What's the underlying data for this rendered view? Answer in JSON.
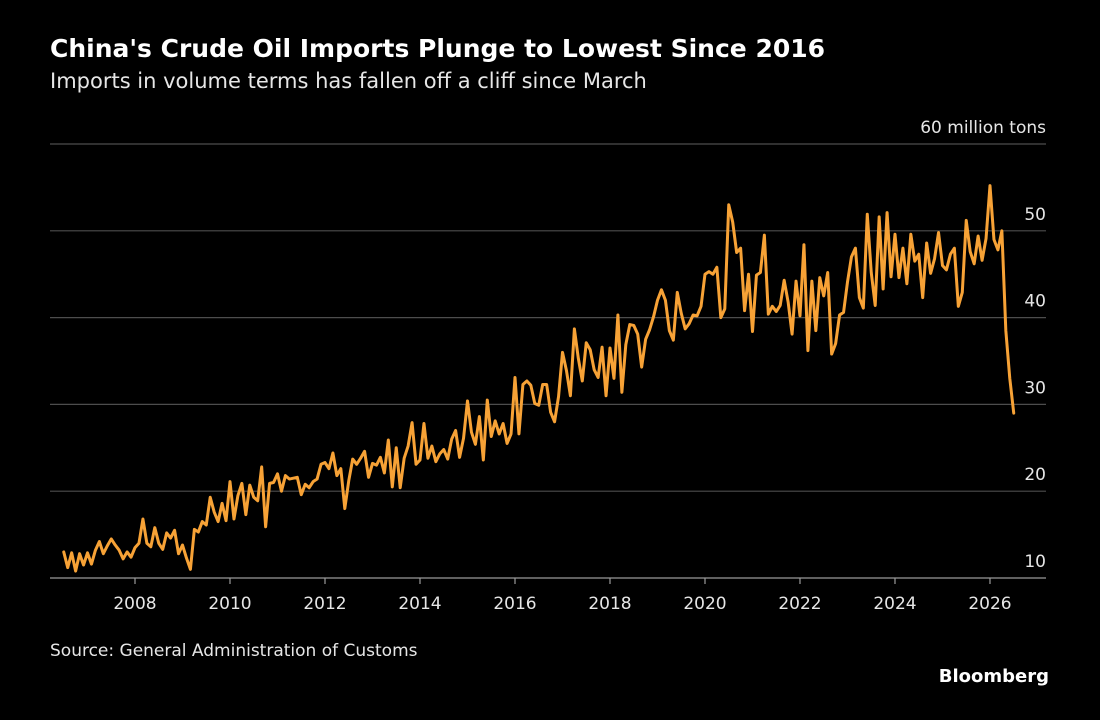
{
  "chart_data": {
    "type": "line",
    "title": "China's Crude Oil Imports Plunge to Lowest Since 2016",
    "subtitle": "Imports in volume terms has fallen off a cliff since March",
    "source": "Source: General Administration of Customs",
    "brand": "Bloomberg",
    "categories": [
      null,
      null,
      null,
      null,
      null,
      null,
      null,
      null,
      null,
      null,
      null,
      null,
      null,
      null,
      null,
      null,
      null,
      null,
      "2008",
      null,
      null,
      null,
      null,
      null,
      null,
      null,
      null,
      null,
      null,
      null,
      null,
      null,
      null,
      null,
      null,
      null,
      null,
      null,
      null,
      null,
      null,
      null,
      "2010",
      null,
      null,
      null,
      null,
      null,
      null,
      null,
      null,
      null,
      null,
      null,
      null,
      null,
      null,
      null,
      null,
      null,
      null,
      null,
      null,
      null,
      null,
      null,
      "2012",
      null,
      null,
      null,
      null,
      null,
      null,
      null,
      null,
      null,
      null,
      null,
      null,
      null,
      null,
      null,
      null,
      null,
      null,
      null,
      null,
      null,
      null,
      null,
      "2014",
      null,
      null,
      null,
      null,
      null,
      null,
      null,
      null,
      null,
      null,
      null,
      null,
      null,
      null,
      null,
      null,
      null,
      null,
      null,
      null,
      null,
      null,
      null,
      "2016",
      null,
      null,
      null,
      null,
      null,
      null,
      null,
      null,
      null,
      null,
      null,
      null,
      null,
      null,
      null,
      null,
      null,
      null,
      null,
      null,
      null,
      null,
      null,
      "2018",
      null,
      null,
      null,
      null,
      null,
      null,
      null,
      null,
      null,
      null,
      null,
      null,
      null,
      null,
      null,
      null,
      null,
      null,
      null,
      null,
      null,
      null,
      null,
      "2020",
      null,
      null,
      null,
      null,
      null,
      null,
      null,
      null,
      null,
      null,
      null,
      null,
      null,
      null,
      null,
      null,
      null,
      null,
      null,
      null,
      null,
      null,
      null,
      "2022",
      null,
      null,
      null,
      null,
      null,
      null,
      null,
      null,
      null,
      null,
      null,
      null,
      null,
      null,
      null,
      null,
      null,
      null,
      null,
      null,
      null,
      null,
      null,
      "2024",
      null,
      null,
      null,
      null,
      null,
      null,
      null,
      null,
      null,
      null,
      null,
      null,
      null,
      null,
      null,
      null,
      null,
      null,
      null,
      null,
      null,
      null,
      null,
      "2026",
      null,
      null,
      null,
      null,
      null,
      null
    ],
    "series": [
      {
        "color": "#f7a236",
        "values": [
          13.0,
          11.2,
          12.9,
          10.8,
          12.8,
          11.5,
          12.9,
          11.6,
          13.2,
          14.2,
          12.8,
          13.7,
          14.5,
          13.8,
          13.2,
          12.2,
          13.0,
          12.4,
          13.5,
          14.0,
          16.8,
          14.0,
          13.6,
          15.8,
          14.0,
          13.3,
          15.2,
          14.6,
          15.5,
          12.8,
          13.8,
          12.3,
          11.0,
          15.6,
          15.3,
          16.5,
          16.1,
          19.3,
          17.6,
          16.5,
          18.6,
          16.6,
          21.1,
          16.8,
          19.5,
          20.9,
          17.3,
          20.7,
          19.3,
          18.9,
          22.8,
          15.9,
          20.9,
          21.0,
          22.0,
          20.0,
          21.8,
          21.4,
          21.5,
          21.6,
          19.6,
          20.8,
          20.4,
          21.1,
          21.4,
          23.1,
          23.3,
          22.6,
          24.4,
          21.8,
          22.6,
          18.0,
          21.2,
          23.7,
          23.1,
          23.8,
          24.6,
          21.6,
          23.2,
          23.0,
          23.9,
          22.1,
          25.9,
          20.5,
          25.0,
          20.4,
          23.8,
          25.2,
          27.9,
          23.1,
          23.6,
          27.8,
          23.8,
          25.2,
          23.4,
          24.3,
          24.8,
          23.7,
          26.0,
          27.0,
          23.9,
          26.1,
          30.4,
          26.8,
          25.4,
          28.6,
          23.6,
          30.5,
          26.3,
          28.1,
          26.6,
          27.8,
          25.5,
          26.6,
          33.1,
          26.6,
          32.3,
          32.7,
          32.2,
          30.1,
          29.9,
          32.3,
          32.3,
          29.1,
          28.0,
          30.9,
          36.0,
          33.9,
          31.0,
          38.7,
          35.3,
          32.7,
          37.1,
          36.3,
          34.0,
          33.1,
          36.6,
          31.0,
          36.5,
          33.0,
          40.3,
          31.4,
          36.9,
          39.2,
          39.1,
          38.1,
          34.3,
          37.5,
          38.6,
          40.1,
          42.0,
          43.2,
          42.0,
          38.5,
          37.4,
          42.9,
          40.5,
          38.7,
          39.3,
          40.3,
          40.2,
          41.3,
          45.0,
          45.3,
          45.0,
          45.8,
          40.0,
          41.0,
          53.0,
          51.0,
          47.5,
          48.0,
          40.8,
          45.0,
          38.4,
          44.9,
          45.2,
          49.5,
          40.4,
          41.3,
          40.7,
          41.4,
          44.3,
          41.8,
          38.1,
          44.2,
          40.2,
          48.4,
          36.2,
          44.2,
          38.5,
          44.6,
          42.5,
          45.2,
          35.8,
          37.0,
          40.3,
          40.6,
          44.1,
          47.0,
          48.0,
          42.3,
          41.1,
          51.9,
          45.2,
          41.4,
          51.6,
          43.3,
          52.1,
          44.7,
          49.6,
          44.6,
          48.0,
          43.9,
          49.6,
          46.5,
          47.3,
          42.3,
          48.6,
          45.1,
          46.8,
          49.8,
          46.0,
          45.5,
          47.3,
          48.0,
          41.3,
          42.9,
          51.2,
          47.6,
          46.2,
          49.4,
          46.6,
          49.1,
          55.2,
          49.0,
          47.8,
          50.0,
          38.5,
          33.0,
          29.0
        ]
      }
    ],
    "ylim": [
      10,
      60
    ],
    "yticks": [
      10,
      20,
      30,
      40,
      50,
      {
        "value": 60,
        "label": "60 million tons"
      }
    ],
    "grid": true
  }
}
